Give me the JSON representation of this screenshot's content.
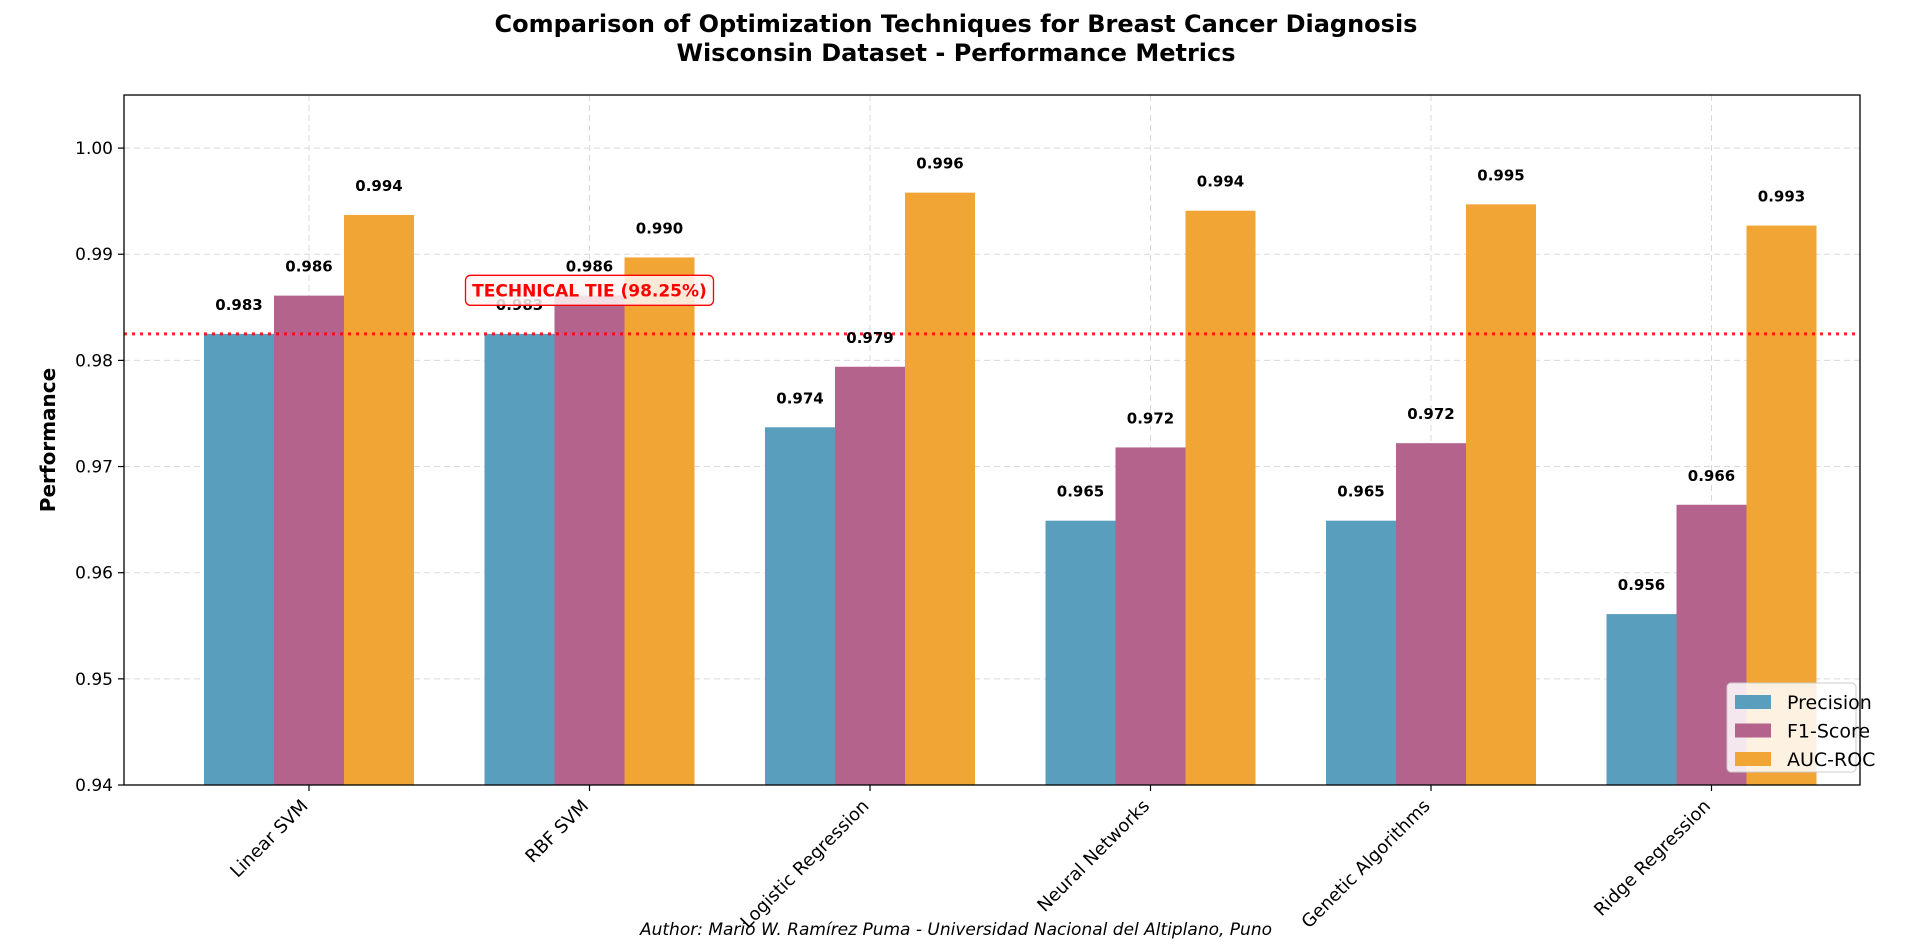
{
  "chart_data": {
    "type": "bar",
    "title": "Comparison of Optimization Techniques for Breast Cancer Diagnosis",
    "subtitle": "Wisconsin Dataset - Performance Metrics",
    "xlabel": "",
    "ylabel": "Performance",
    "ylim": [
      0.94,
      1.005
    ],
    "yticks": [
      0.94,
      0.95,
      0.96,
      0.97,
      0.98,
      0.99,
      1.0
    ],
    "ytick_labels": [
      "0.94",
      "0.95",
      "0.96",
      "0.97",
      "0.98",
      "0.99",
      "1.00"
    ],
    "grid": true,
    "legend_position": "bottom-right",
    "categories": [
      "Linear SVM",
      "RBF SVM",
      "Logistic Regression",
      "Neural Networks",
      "Genetic Algorithms",
      "Ridge Regression"
    ],
    "series": [
      {
        "name": "Precision",
        "color": "#5a9ebd",
        "values": [
          0.9825,
          0.9825,
          0.9737,
          0.9649,
          0.9649,
          0.9561
        ],
        "labels": [
          "0.983",
          "0.983",
          "0.974",
          "0.965",
          "0.965",
          "0.956"
        ]
      },
      {
        "name": "F1-Score",
        "color": "#b3638c",
        "values": [
          0.9861,
          0.9861,
          0.9794,
          0.9718,
          0.9722,
          0.9664
        ],
        "labels": [
          "0.986",
          "0.986",
          "0.979",
          "0.972",
          "0.972",
          "0.966"
        ]
      },
      {
        "name": "AUC-ROC",
        "color": "#f1a535",
        "values": [
          0.9937,
          0.9897,
          0.9958,
          0.9941,
          0.9947,
          0.9927
        ],
        "labels": [
          "0.994",
          "0.990",
          "0.996",
          "0.994",
          "0.995",
          "0.993"
        ]
      }
    ],
    "reference_line": {
      "value": 0.9825,
      "color": "#ff0000",
      "style": "dotted"
    },
    "annotation": {
      "text": "TECHNICAL TIE (98.25%)",
      "category": "RBF SVM",
      "value": 0.9866,
      "color": "#ff0000"
    },
    "footer": "Author: Mario W. Ramírez Puma - Universidad Nacional del Altiplano, Puno"
  }
}
